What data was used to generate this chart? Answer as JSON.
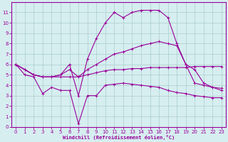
{
  "bg_color": "#d6eef0",
  "line_color": "#990099",
  "grid_color": "#aacccc",
  "xlabel": "Windchill (Refroidissement éolien,°C)",
  "xlim": [
    -0.5,
    23.5
  ],
  "ylim": [
    0,
    12
  ],
  "xticks": [
    0,
    1,
    2,
    3,
    4,
    5,
    6,
    7,
    8,
    9,
    10,
    11,
    12,
    13,
    14,
    15,
    16,
    17,
    18,
    19,
    20,
    21,
    22,
    23
  ],
  "yticks": [
    0,
    1,
    2,
    3,
    4,
    5,
    6,
    7,
    8,
    9,
    10,
    11
  ],
  "lines": [
    {
      "x": [
        0,
        1,
        2,
        3,
        4,
        5,
        6,
        7,
        8,
        9,
        10,
        11,
        12,
        13,
        14,
        15,
        16,
        17,
        18,
        19,
        20,
        21,
        22,
        23
      ],
      "y": [
        6,
        5.5,
        5.0,
        4.8,
        4.8,
        4.8,
        4.8,
        4.8,
        5.0,
        5.2,
        5.4,
        5.5,
        5.5,
        5.6,
        5.6,
        5.7,
        5.7,
        5.7,
        5.7,
        5.7,
        5.8,
        5.8,
        5.8,
        5.8
      ]
    },
    {
      "x": [
        0,
        1,
        2,
        3,
        4,
        5,
        6,
        7,
        8,
        9,
        10,
        11,
        12,
        13,
        14,
        15,
        16,
        17,
        18,
        19,
        20,
        21,
        22,
        23
      ],
      "y": [
        6,
        5,
        4.8,
        3.2,
        3.8,
        3.5,
        3.5,
        0.3,
        3.0,
        3.0,
        4.0,
        4.1,
        4.2,
        4.1,
        4.0,
        3.9,
        3.8,
        3.5,
        3.3,
        3.2,
        3.0,
        2.9,
        2.8,
        2.8
      ]
    },
    {
      "x": [
        0,
        1,
        2,
        3,
        4,
        5,
        6,
        7,
        8,
        9,
        10,
        11,
        12,
        13,
        14,
        15,
        16,
        17,
        18,
        19,
        20,
        21,
        22,
        23
      ],
      "y": [
        6,
        5.5,
        5.0,
        4.8,
        4.8,
        5.0,
        6.0,
        3.0,
        6.5,
        8.5,
        10.0,
        11.0,
        10.5,
        11.0,
        11.2,
        11.2,
        11.2,
        10.5,
        8.0,
        6.0,
        4.2,
        4.0,
        3.8,
        3.7
      ]
    },
    {
      "x": [
        0,
        1,
        2,
        3,
        4,
        5,
        6,
        7,
        8,
        9,
        10,
        11,
        12,
        13,
        14,
        15,
        16,
        17,
        18,
        19,
        20,
        21,
        22,
        23
      ],
      "y": [
        6,
        5.5,
        5.0,
        4.8,
        4.8,
        5.0,
        5.5,
        4.8,
        5.5,
        6.0,
        6.5,
        7.0,
        7.2,
        7.5,
        7.8,
        8.0,
        8.2,
        8.0,
        7.8,
        6.0,
        5.5,
        4.2,
        3.8,
        3.5
      ]
    }
  ],
  "tick_fontsize": 5,
  "xlabel_fontsize": 5,
  "marker_size": 2.5,
  "linewidth": 0.8
}
